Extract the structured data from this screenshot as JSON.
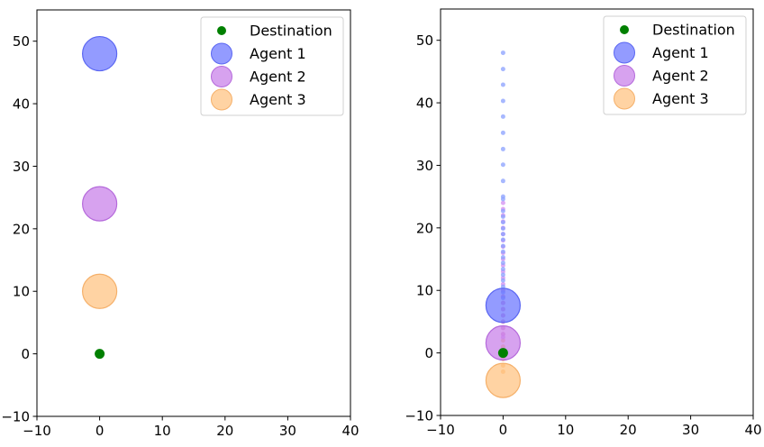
{
  "chart_data": [
    {
      "type": "scatter",
      "panel": "left",
      "xlim": [
        -10,
        40
      ],
      "ylim": [
        -10,
        55
      ],
      "xticks": [
        -10,
        0,
        10,
        20,
        30,
        40
      ],
      "yticks": [
        -10,
        0,
        10,
        20,
        30,
        40,
        50
      ],
      "grid": false,
      "legend_position": "top-right",
      "destination": {
        "name": "Destination",
        "x": 0,
        "y": 0,
        "color": "#008000"
      },
      "agents": [
        {
          "name": "Agent 1",
          "x": 0,
          "y": 48,
          "color": "#6a75ff",
          "stroke": "#5a66f2"
        },
        {
          "name": "Agent 2",
          "x": 0,
          "y": 24,
          "color": "#c77ee9",
          "stroke": "#b56adb"
        },
        {
          "name": "Agent 3",
          "x": 0,
          "y": 10,
          "color": "#ffc27f",
          "stroke": "#f5b06a"
        }
      ],
      "trails": []
    },
    {
      "type": "scatter",
      "panel": "right",
      "xlim": [
        -10,
        40
      ],
      "ylim": [
        -10,
        55
      ],
      "xticks": [
        -10,
        0,
        10,
        20,
        30,
        40
      ],
      "yticks": [
        -10,
        0,
        10,
        20,
        30,
        40,
        50
      ],
      "grid": false,
      "legend_position": "top-right",
      "destination": {
        "name": "Destination",
        "x": 0,
        "y": 0,
        "color": "#008000"
      },
      "agents": [
        {
          "name": "Agent 1",
          "x": 0,
          "y": 7.6,
          "color": "#6a75ff",
          "stroke": "#5a66f2"
        },
        {
          "name": "Agent 2",
          "x": 0,
          "y": 1.6,
          "color": "#c77ee9",
          "stroke": "#b56adb"
        },
        {
          "name": "Agent 3",
          "x": 0,
          "y": -4.4,
          "color": "#ffc27f",
          "stroke": "#f5b06a"
        }
      ],
      "trails": [
        {
          "agent": "Agent 3",
          "color": "#ffb870",
          "x": 0,
          "y": [
            10,
            9,
            8,
            7,
            6,
            5,
            4,
            3,
            2,
            1,
            0,
            -1,
            -2,
            -3
          ]
        },
        {
          "agent": "Agent 2",
          "color": "#d48ef0",
          "x": 0,
          "y": [
            24,
            23,
            22,
            21,
            20,
            19,
            18,
            17,
            16,
            15,
            14,
            13,
            12,
            11,
            10,
            9,
            8,
            7,
            6,
            5,
            4,
            3,
            2.5
          ]
        },
        {
          "agent": "Agent 1",
          "color": "#8aa0ff",
          "x": 0,
          "y": [
            48,
            45.4,
            42.9,
            40.3,
            37.8,
            35.2,
            32.6,
            30.1,
            27.5,
            25,
            24.6,
            22.7,
            21.8,
            20.9,
            19.9,
            19,
            18.1,
            17.1,
            16.2,
            15.3,
            14.4,
            13.4,
            12.5,
            11.6,
            10.6,
            9.7,
            8.8
          ]
        }
      ]
    }
  ]
}
